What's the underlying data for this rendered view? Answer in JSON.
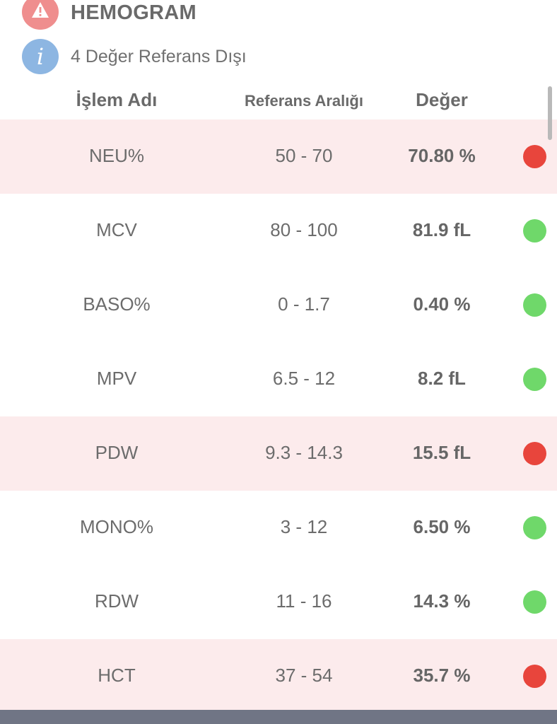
{
  "section": {
    "title": "HEMOGRAM",
    "warning_icon": "warning-triangle-icon",
    "info_icon": "info-icon",
    "info_glyph": "i",
    "info_text": "4 Değer Referans Dışı",
    "warning_color": "#ef8e8e",
    "info_color": "#8db6e2"
  },
  "columns": {
    "name": "İşlem Adı",
    "range": "Referans Aralığı",
    "value": "Değer"
  },
  "status_colors": {
    "abnormal": "#e8453c",
    "normal": "#6fd86a",
    "abnormal_row_bg": "#fcebec"
  },
  "rows": [
    {
      "name": "NEU%",
      "range": "50 - 70",
      "value": "70.80 %",
      "status": "abnormal"
    },
    {
      "name": "MCV",
      "range": "80 - 100",
      "value": "81.9 fL",
      "status": "normal"
    },
    {
      "name": "BASO%",
      "range": "0 - 1.7",
      "value": "0.40 %",
      "status": "normal"
    },
    {
      "name": "MPV",
      "range": "6.5 - 12",
      "value": "8.2 fL",
      "status": "normal"
    },
    {
      "name": "PDW",
      "range": "9.3 - 14.3",
      "value": "15.5 fL",
      "status": "abnormal"
    },
    {
      "name": "MONO%",
      "range": "3 - 12",
      "value": "6.50 %",
      "status": "normal"
    },
    {
      "name": "RDW",
      "range": "11 - 16",
      "value": "14.3 %",
      "status": "normal"
    },
    {
      "name": "HCT",
      "range": "37 - 54",
      "value": "35.7 %",
      "status": "abnormal"
    }
  ]
}
